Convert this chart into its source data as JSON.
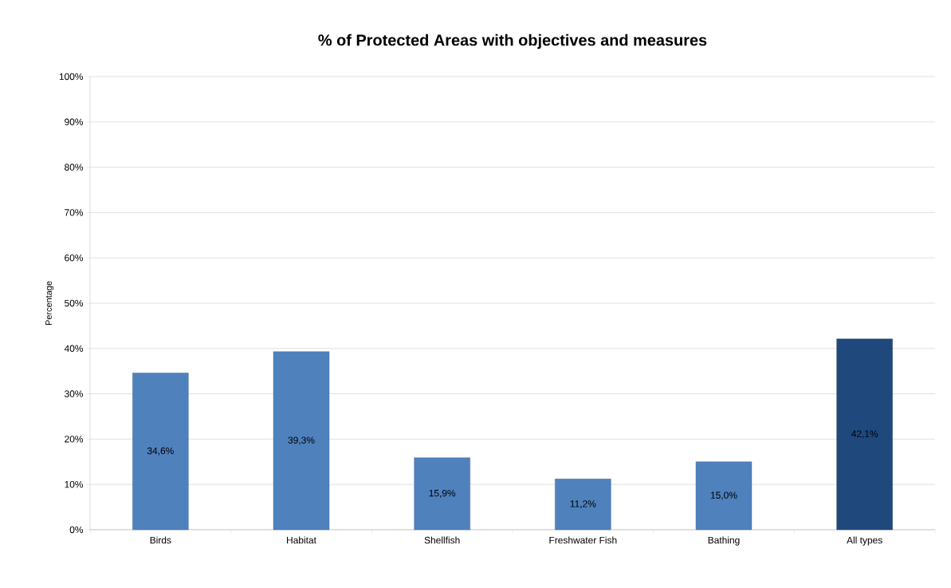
{
  "chart_data": {
    "type": "bar",
    "title": "% of Protected Areas with objectives and measures",
    "ylabel": "Percentage",
    "categories": [
      "Birds",
      "Habitat",
      "Shellfish",
      "Freshwater Fish",
      "Bathing",
      "All types"
    ],
    "values": [
      34.6,
      39.3,
      15.9,
      11.2,
      15.0,
      42.1
    ],
    "colors": [
      "#4f81bd",
      "#4f81bd",
      "#4f81bd",
      "#4f81bd",
      "#4f81bd",
      "#1f497d"
    ],
    "value_labels": [
      "34,6%",
      "39,3%",
      "15,9%",
      "11,2%",
      "15,0%",
      "42,1%"
    ],
    "ylim": [
      0,
      100
    ],
    "yticks": [
      {
        "value": 0,
        "label": "0%"
      },
      {
        "value": 10,
        "label": "10%"
      },
      {
        "value": 20,
        "label": "20%"
      },
      {
        "value": 30,
        "label": "30%"
      },
      {
        "value": 40,
        "label": "40%"
      },
      {
        "value": 50,
        "label": "50%"
      },
      {
        "value": 60,
        "label": "60%"
      },
      {
        "value": 70,
        "label": "70%"
      },
      {
        "value": 80,
        "label": "80%"
      },
      {
        "value": 90,
        "label": "90%"
      },
      {
        "value": 100,
        "label": "100%"
      }
    ],
    "grid": "y"
  }
}
